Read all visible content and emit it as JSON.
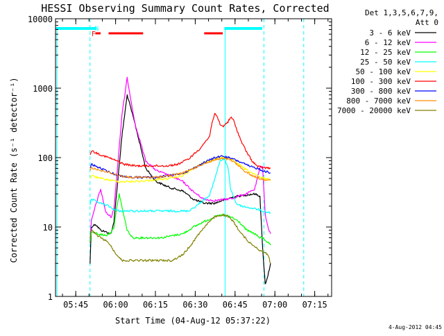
{
  "chart_data": {
    "type": "line",
    "title": "HESSI Observing Summary Count Rates, Corrected",
    "xlabel": "Start Time (04-Aug-12 05:37:22)",
    "ylabel": "Corrected Count Rate (s⁻¹ detector⁻¹)",
    "yscale": "log",
    "ylim": [
      1,
      10000
    ],
    "xlim_minutes_after_0537": [
      0,
      104
    ],
    "x_unit": "minutes after 05:37:22 UT",
    "xtick_labels": [
      "05:45",
      "06:00",
      "06:15",
      "06:30",
      "06:45",
      "07:00",
      "07:15"
    ],
    "ytick_labels": [
      "1",
      "10",
      "100",
      "1000",
      "10000"
    ],
    "legend_header": [
      "Det 1,3,5,6,7,9,",
      "Att 0"
    ],
    "legend_placement": "right",
    "grid": false,
    "series": [
      {
        "name": "3 - 6 keV",
        "color": "#000000",
        "x": [
          13,
          13.5,
          15,
          17,
          19,
          21,
          22,
          23,
          25,
          27,
          30,
          34,
          38,
          43,
          48,
          52,
          56,
          60,
          64,
          67,
          69,
          72,
          75,
          77,
          78,
          79,
          80,
          81
        ],
        "y": [
          3,
          10,
          11,
          9,
          8.5,
          8,
          12,
          30,
          200,
          800,
          300,
          70,
          45,
          37,
          33,
          25,
          22,
          22,
          25,
          27,
          28,
          29,
          30,
          28,
          5,
          1.5,
          2,
          3
        ]
      },
      {
        "name": "6 - 12 keV",
        "color": "#ff00ff",
        "x": [
          13,
          13.5,
          15,
          17,
          19,
          21,
          22,
          23,
          25,
          27,
          30,
          34,
          38,
          43,
          48,
          52,
          56,
          60,
          64,
          67,
          69,
          72,
          75,
          77,
          78,
          79,
          80,
          81
        ],
        "y": [
          6,
          12,
          20,
          35,
          16,
          14,
          18,
          50,
          400,
          1400,
          300,
          90,
          65,
          55,
          45,
          32,
          25,
          24,
          25,
          26,
          28,
          30,
          35,
          70,
          75,
          15,
          10,
          8
        ]
      },
      {
        "name": "12 - 25 keV",
        "color": "#00ff00",
        "x": [
          13,
          13.5,
          16,
          19,
          21,
          22,
          23,
          24,
          25.5,
          27,
          29,
          32,
          36,
          40,
          44,
          48,
          52,
          56,
          60,
          63,
          66,
          69,
          72,
          75,
          77,
          78,
          80,
          81
        ],
        "y": [
          6,
          8.5,
          8,
          7.5,
          8.5,
          10,
          18,
          30,
          16,
          9,
          7,
          7,
          7,
          7,
          7.5,
          8,
          10,
          12,
          14,
          15,
          14,
          12,
          9,
          8,
          7,
          7,
          6,
          5.5
        ]
      },
      {
        "name": "25 - 50 keV",
        "color": "#00ffff",
        "x": [
          13,
          13.5,
          17,
          20,
          22,
          24,
          27,
          30,
          34,
          38,
          42,
          46,
          50,
          53,
          56,
          58,
          60,
          62,
          63,
          64,
          65,
          66,
          68,
          70,
          73,
          76,
          78,
          81
        ],
        "y": [
          20,
          25,
          22,
          20,
          18,
          17,
          17,
          17,
          17,
          17,
          17,
          17,
          17,
          20,
          25,
          28,
          50,
          90,
          95,
          90,
          70,
          35,
          22,
          20,
          19,
          18,
          17,
          16
        ]
      },
      {
        "name": "50 - 100 keV",
        "color": "#ffff00",
        "x": [
          13,
          13.5,
          17,
          21,
          24,
          28,
          33,
          38,
          43,
          48,
          52,
          56,
          60,
          62,
          64,
          66,
          68,
          71,
          74,
          77,
          79,
          81
        ],
        "y": [
          50,
          55,
          50,
          47,
          45,
          45,
          46,
          48,
          50,
          55,
          70,
          85,
          95,
          100,
          100,
          95,
          85,
          70,
          60,
          52,
          50,
          48
        ]
      },
      {
        "name": "100 - 300 keV",
        "color": "#ff0000",
        "x": [
          13,
          13.5,
          17,
          20,
          23,
          26,
          30,
          34,
          38,
          42,
          46,
          50,
          54,
          58,
          59,
          60,
          61,
          62,
          63,
          63.5,
          65,
          66,
          67,
          68,
          70,
          72,
          74,
          76,
          78,
          81
        ],
        "y": [
          110,
          125,
          110,
          100,
          90,
          80,
          76,
          76,
          76,
          76,
          80,
          95,
          130,
          200,
          330,
          420,
          380,
          300,
          280,
          290,
          330,
          380,
          350,
          270,
          170,
          120,
          90,
          75,
          72,
          70
        ]
      },
      {
        "name": "300 - 800 keV",
        "color": "#0000ff",
        "x": [
          13,
          13.5,
          17,
          20,
          24,
          28,
          33,
          38,
          43,
          48,
          52,
          56,
          60,
          63,
          65,
          67,
          70,
          73,
          76,
          78,
          81
        ],
        "y": [
          70,
          80,
          70,
          62,
          55,
          52,
          52,
          52,
          55,
          60,
          70,
          85,
          100,
          105,
          100,
          95,
          85,
          75,
          70,
          65,
          60
        ]
      },
      {
        "name": "800 - 7000 keV",
        "color": "#ff8c00",
        "x": [
          13,
          13.5,
          17,
          21,
          24,
          28,
          33,
          38,
          43,
          48,
          52,
          56,
          60,
          62,
          64,
          66,
          68,
          71,
          74,
          77,
          79,
          81
        ],
        "y": [
          65,
          72,
          65,
          60,
          55,
          52,
          52,
          52,
          55,
          60,
          70,
          82,
          92,
          96,
          96,
          92,
          82,
          65,
          55,
          50,
          48,
          47
        ]
      },
      {
        "name": "7000 - 20000 keV",
        "color": "#808000",
        "x": [
          13,
          13.5,
          15,
          17,
          20,
          22,
          25,
          28,
          32,
          36,
          40,
          44,
          48,
          51,
          54,
          57,
          60,
          63,
          65,
          67,
          70,
          73,
          76,
          77,
          78,
          80,
          81
        ],
        "y": [
          7,
          9,
          8,
          7,
          6,
          4.5,
          3.3,
          3.3,
          3.3,
          3.3,
          3.3,
          3.3,
          4,
          5.5,
          8,
          11,
          14,
          15,
          14,
          12,
          8,
          6,
          5,
          4.5,
          4.5,
          4,
          3
        ]
      }
    ],
    "annotations": {
      "n_marker": "N",
      "f_marker": "F",
      "footer_date": "4-Aug-2012 04:45",
      "night_intervals": [
        [
          0,
          13
        ],
        [
          63.6,
          75.5
        ]
      ],
      "eclipse_boundaries": [
        13,
        78.5,
        93.5
      ],
      "flare_flag_intervals": [
        [
          15,
          17
        ],
        [
          20,
          33
        ],
        [
          56,
          63
        ]
      ]
    }
  }
}
